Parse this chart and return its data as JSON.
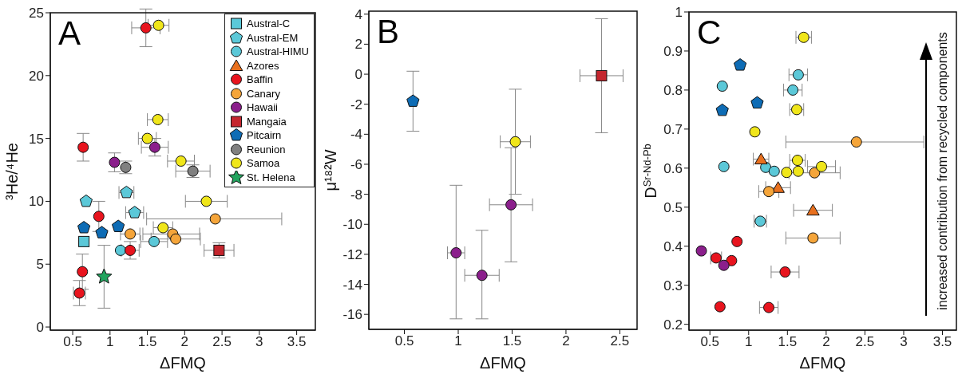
{
  "chart_data": [
    {
      "type": "scatter",
      "title": "A",
      "xlabel": "ΔFMQ",
      "ylabel": "³He/⁴He",
      "xlim": [
        0.2,
        3.75
      ],
      "xticks": [
        0.5,
        1,
        1.5,
        2,
        2.5,
        3,
        3.5
      ],
      "ylim": [
        -0.25,
        25
      ],
      "yticks": [
        0,
        5,
        10,
        15,
        20,
        25
      ],
      "legend": "top right",
      "series": [
        {
          "name": "Austral-C",
          "color": "#5bc8d8",
          "marker": "square",
          "x": [
            0.65
          ],
          "values": [
            6.8
          ],
          "errors": [
            null
          ],
          "xerrors": [
            null
          ]
        },
        {
          "name": "Austral-EM",
          "color": "#5bc8d8",
          "x": [
            0.68,
            1.22,
            1.33
          ],
          "values": [
            10.0,
            10.7,
            9.1
          ],
          "errors": [
            null,
            null,
            null
          ],
          "xerrors": [
            null,
            0.1,
            0.12
          ]
        },
        {
          "name": "Austral-HIMU",
          "color": "#5bc8d8",
          "marker": "circle",
          "x": [
            1.14,
            1.59
          ],
          "values": [
            6.1,
            6.8
          ],
          "errors": [
            null,
            null
          ],
          "xerrors": [
            null,
            0.18
          ]
        },
        {
          "name": "Azores",
          "color": "#e8701e",
          "marker": "triangle"
        },
        {
          "name": "Baffin",
          "color": "#e8141e",
          "marker": "circle",
          "x": [
            1.48,
            0.64,
            0.85,
            0.63,
            0.59,
            1.27
          ],
          "values": [
            23.8,
            14.3,
            8.8,
            4.4,
            2.7,
            6.1
          ],
          "errors": [
            1.5,
            1.1,
            1.2,
            1.4,
            1.0,
            0.7
          ],
          "xerrors": [
            0.19,
            null,
            null,
            null,
            0.08,
            0.12
          ]
        },
        {
          "name": "Canary",
          "color": "#f5a53a",
          "marker": "circle",
          "x": [
            2.41,
            1.27,
            1.84,
            1.88
          ],
          "values": [
            8.6,
            7.4,
            7.4,
            7.0
          ],
          "errors": [
            null,
            null,
            null,
            null
          ],
          "xerrors": [
            [
              1.49,
              3.3
            ],
            0.13,
            [
              1.44,
              2.2
            ],
            0.33
          ]
        },
        {
          "name": "Hawaii",
          "color": "#8b1f8c",
          "marker": "circle",
          "x": [
            1.06,
            1.6
          ],
          "values": [
            13.1,
            14.3
          ],
          "errors": [
            0.75,
            0.7
          ],
          "xerrors": [
            null,
            0.18
          ]
        },
        {
          "name": "Mangaia",
          "color": "#c4262e",
          "marker": "square",
          "x": [
            2.46
          ],
          "values": [
            6.1
          ],
          "errors": [
            0.6
          ],
          "xerrors": [
            0.2
          ]
        },
        {
          "name": "Pitcairn",
          "color": "#0e6cb5",
          "x": [
            0.65,
            0.89,
            1.11
          ],
          "values": [
            7.9,
            7.5,
            8.0
          ],
          "errors": [
            null,
            null,
            null
          ],
          "xerrors": [
            null,
            null,
            null
          ]
        },
        {
          "name": "Reunion",
          "color": "#808080",
          "marker": "circle",
          "x": [
            1.21,
            2.11
          ],
          "values": [
            12.7,
            12.4
          ],
          "errors": [
            0.5,
            0.5
          ],
          "xerrors": [
            null,
            0.23
          ]
        },
        {
          "name": "Samoa",
          "color": "#f0e61a",
          "marker": "circle",
          "x": [
            1.65,
            1.64,
            1.5,
            1.95,
            2.29,
            1.71
          ],
          "values": [
            24.0,
            16.5,
            15.0,
            13.2,
            10.0,
            7.9
          ],
          "errors": [
            null,
            null,
            null,
            null,
            null,
            null
          ],
          "xerrors": [
            0.14,
            0.14,
            0.12,
            0.18,
            0.28,
            0.13
          ]
        },
        {
          "name": "St. Helena",
          "color": "#22a45e",
          "marker": "star",
          "x": [
            0.92
          ],
          "values": [
            4.0
          ],
          "errors": [
            2.5
          ],
          "xerrors": [
            null
          ]
        }
      ]
    },
    {
      "type": "scatter",
      "title": "B",
      "xlabel": "ΔFMQ",
      "ylabel": "μ¹⁸²W",
      "xlim": [
        0.17,
        2.66
      ],
      "xticks": [
        0.5,
        1,
        1.5,
        2,
        2.5
      ],
      "ylim": [
        -17,
        4.2
      ],
      "yticks": [
        -16,
        -14,
        -12,
        -10,
        -8,
        -6,
        -4,
        -2,
        0,
        2,
        4
      ],
      "series": [
        {
          "color": "#0e6cb5",
          "x": [
            0.58
          ],
          "values": [
            -1.8
          ],
          "errors": [
            2.0
          ],
          "xerrors": [
            null
          ]
        },
        {
          "color": "#f0e61a",
          "marker": "circle",
          "x": [
            1.53
          ],
          "values": [
            -4.5
          ],
          "errors": [
            3.5
          ],
          "xerrors": [
            0.14
          ]
        },
        {
          "color": "#c4262e",
          "marker": "square",
          "x": [
            2.33
          ],
          "values": [
            -0.1
          ],
          "errors": [
            3.8
          ],
          "xerrors": [
            0.2
          ]
        },
        {
          "color": "#8b1f8c",
          "marker": "circle",
          "x": [
            0.98,
            1.22,
            1.49
          ],
          "values": [
            -11.9,
            -13.4,
            -8.7
          ],
          "errors": [
            [
              -16.3,
              -7.4
            ],
            [
              -16.3,
              -10.4
            ],
            3.8
          ],
          "xerrors": [
            0.08,
            0.16,
            0.2
          ]
        }
      ]
    },
    {
      "type": "scatter",
      "title": "C",
      "xlabel": "ΔFMQ",
      "ylabel": "D$^{Sr-Nd-Pb}$",
      "xlim": [
        0.23,
        3.68
      ],
      "xticks": [
        0.5,
        1,
        1.5,
        2,
        2.5,
        3,
        3.5
      ],
      "ylim": [
        0.185,
        1
      ],
      "yticks": [
        0.2,
        0.3,
        0.4,
        0.5,
        0.6,
        0.7,
        0.8,
        0.9,
        1
      ],
      "annotations": [
        "increased contribution from recycled components"
      ],
      "series": [
        {
          "color": "#5bc8d8",
          "marker": "circle",
          "x": [
            1.64,
            1.57,
            0.66,
            0.68,
            1.22,
            1.33,
            1.15
          ],
          "values": [
            0.839,
            0.8,
            0.81,
            0.604,
            0.602,
            0.592,
            0.464
          ],
          "xerrors": [
            0.12,
            0.12,
            null,
            null,
            null,
            null,
            0.08
          ]
        },
        {
          "color": "#e8701e",
          "marker": "triangle",
          "x": [
            1.16,
            1.38,
            1.83
          ],
          "values": [
            0.623,
            0.55,
            0.492
          ],
          "xerrors": [
            0.1,
            0.16,
            0.25
          ]
        },
        {
          "color": "#e8141e",
          "marker": "circle",
          "x": [
            0.85,
            0.58,
            0.78,
            1.47,
            0.63,
            1.26
          ],
          "values": [
            0.412,
            0.37,
            0.363,
            0.334,
            0.245,
            0.243
          ],
          "xerrors": [
            null,
            0.07,
            null,
            0.18,
            null,
            0.12
          ]
        },
        {
          "color": "#f5a53a",
          "marker": "circle",
          "x": [
            2.39,
            1.85,
            1.26,
            1.83
          ],
          "values": [
            0.667,
            0.588,
            0.54,
            0.421
          ],
          "xerrors": [
            [
              1.48,
              3.26
            ],
            0.33,
            0.13,
            0.35
          ]
        },
        {
          "color": "#8b1f8c",
          "marker": "circle",
          "x": [
            0.39,
            0.68
          ],
          "values": [
            0.388,
            0.351
          ],
          "xerrors": [
            null,
            null
          ]
        },
        {
          "color": "#0e6cb5",
          "x": [
            0.89,
            0.66,
            1.11
          ],
          "values": [
            0.864,
            0.748,
            0.767
          ],
          "xerrors": [
            null,
            null,
            null
          ]
        },
        {
          "color": "#f0e61a",
          "marker": "circle",
          "x": [
            1.71,
            1.62,
            1.08,
            1.63,
            1.94,
            1.49,
            1.64
          ],
          "values": [
            0.935,
            0.75,
            0.693,
            0.62,
            0.604,
            0.589,
            0.592
          ],
          "xerrors": [
            0.1,
            0.09,
            null,
            0.1,
            0.18,
            null,
            null
          ]
        }
      ]
    }
  ]
}
